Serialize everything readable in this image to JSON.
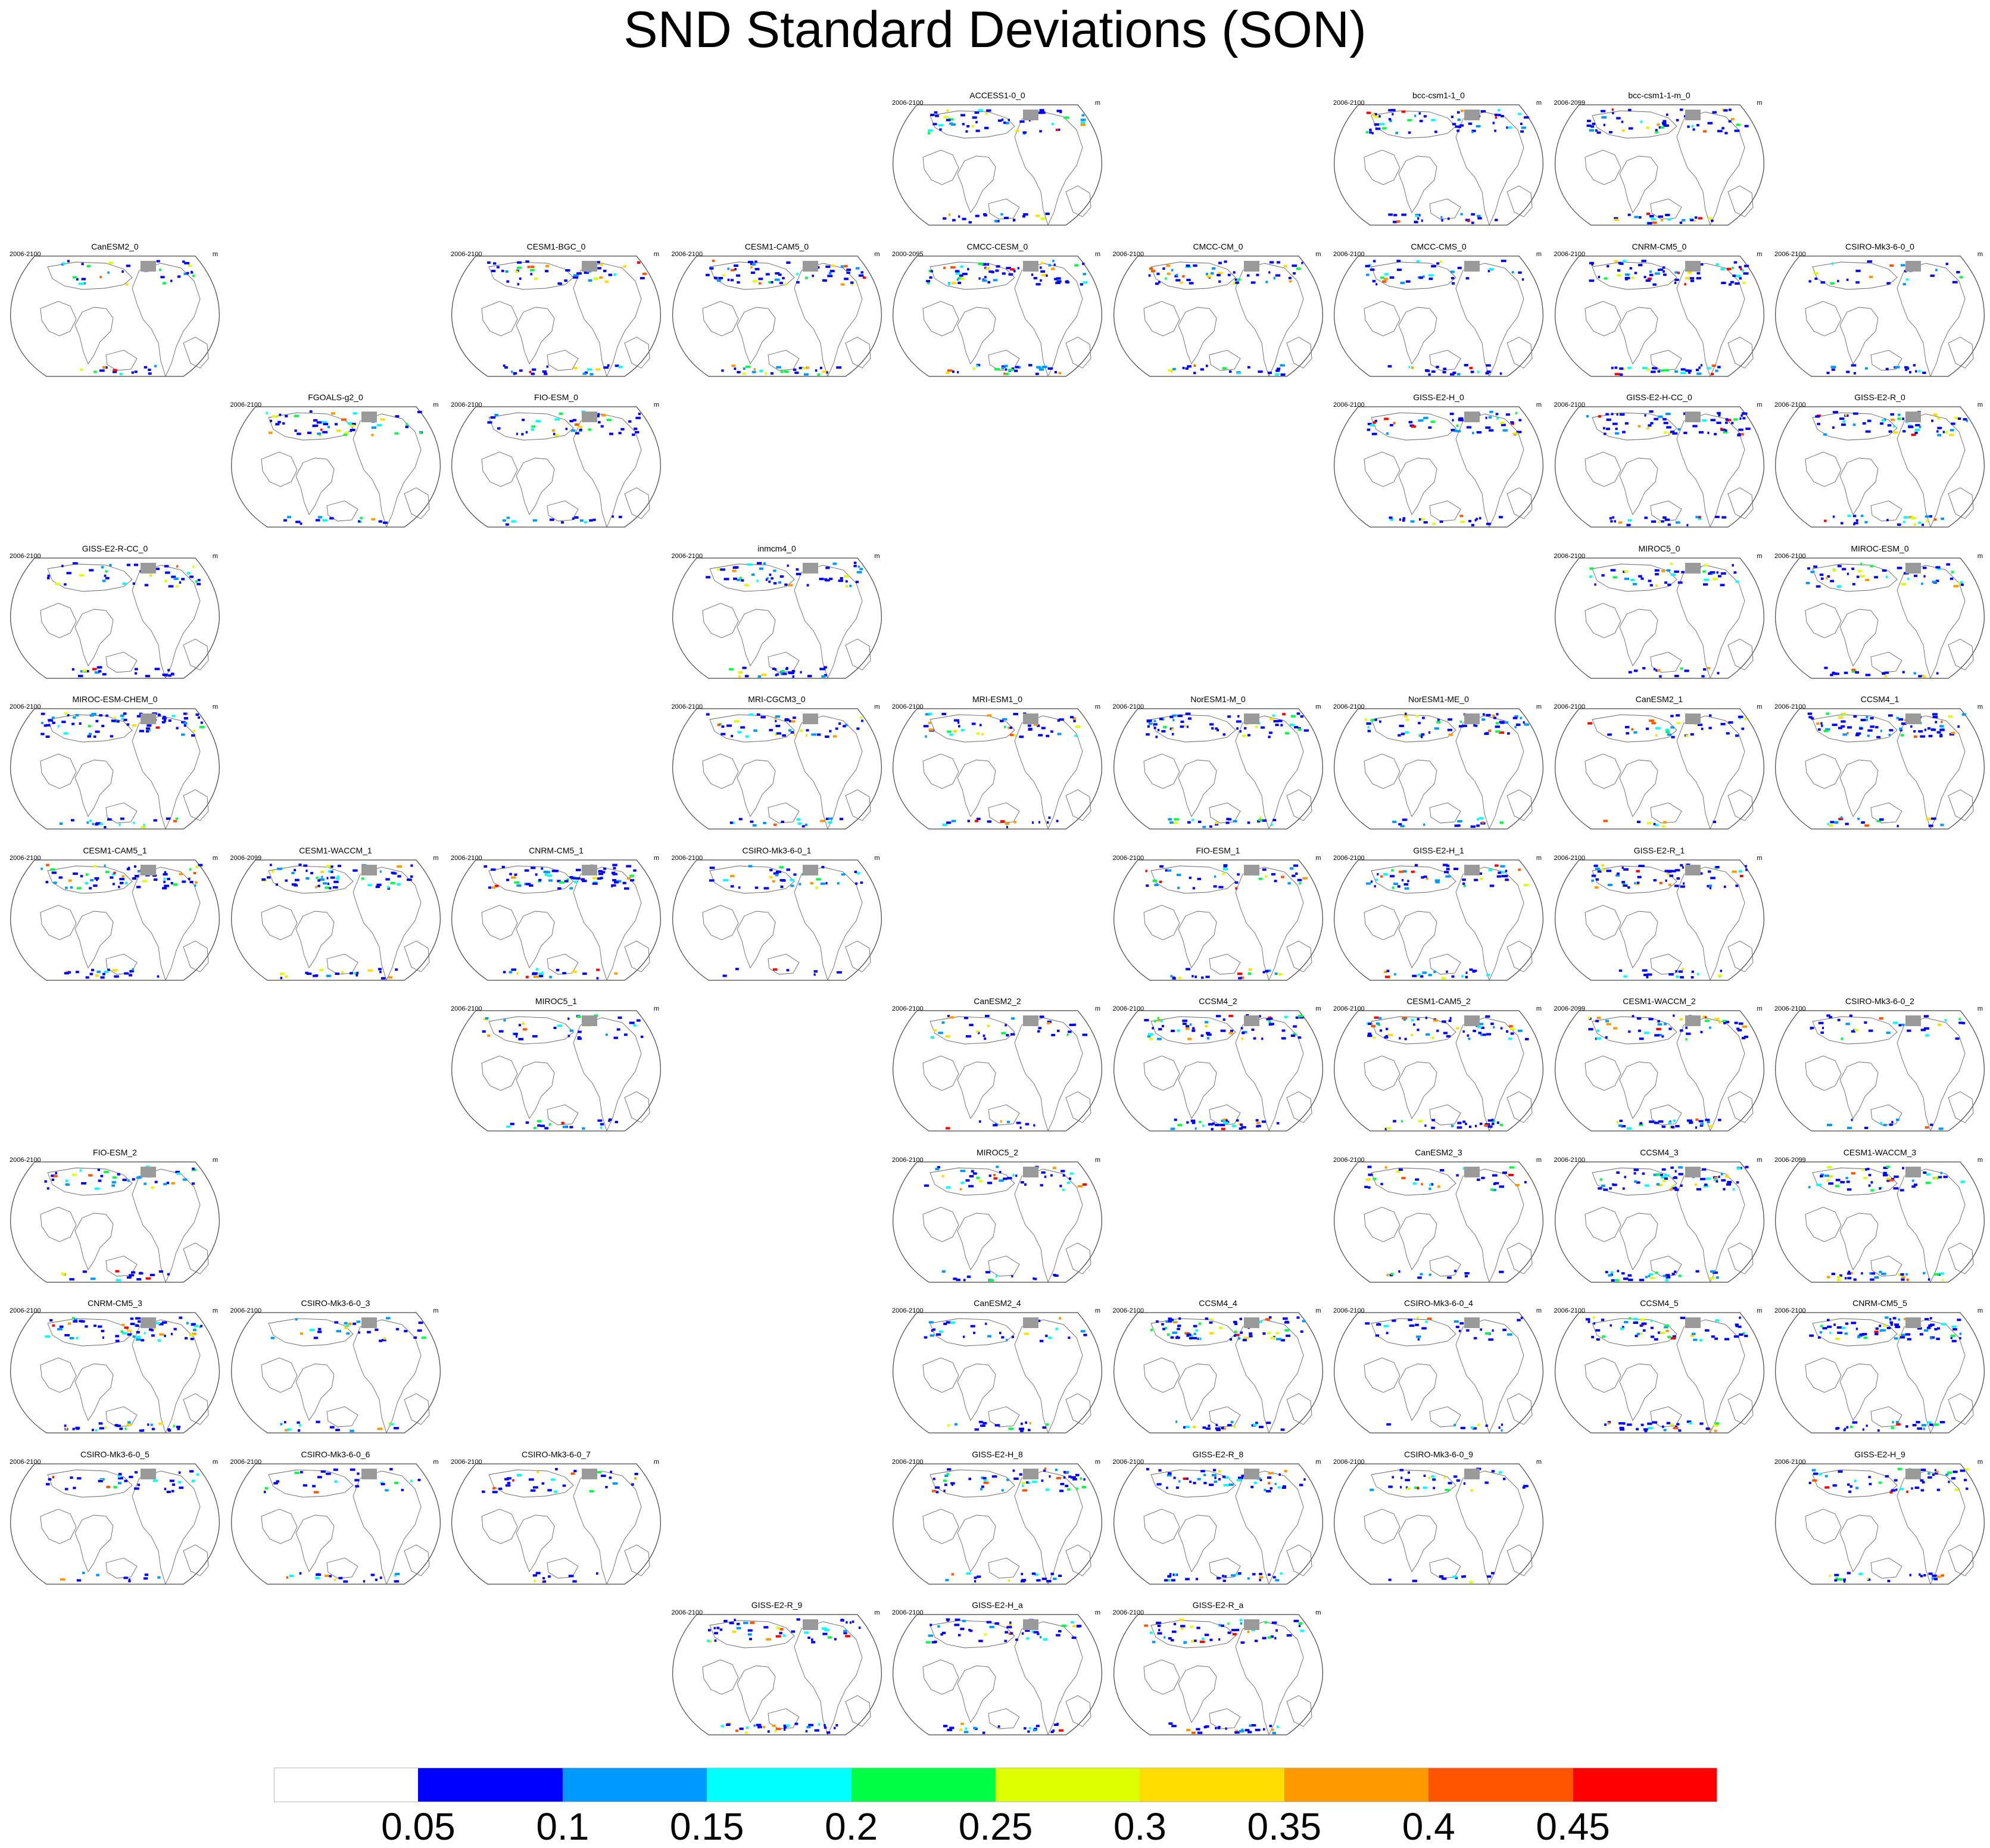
{
  "title": "SND Standard Deviations (SON)",
  "unit": "m",
  "colorbar": {
    "labels": [
      "0.05",
      "0.1",
      "0.15",
      "0.2",
      "0.25",
      "0.3",
      "0.35",
      "0.4",
      "0.45"
    ],
    "colors": [
      "#ffffff",
      "#0000ff",
      "#0099ff",
      "#00ffff",
      "#00ff44",
      "#ddff00",
      "#ffdd00",
      "#ff9900",
      "#ff5500",
      "#ff0000"
    ]
  },
  "panels": [
    {
      "name": "ACCESS1-0_0",
      "period": "2006-2100",
      "row": 0,
      "col": 4
    },
    {
      "name": "bcc-csm1-1_0",
      "period": "2006-2100",
      "row": 0,
      "col": 6
    },
    {
      "name": "bcc-csm1-1-m_0",
      "period": "2006-2099",
      "row": 0,
      "col": 7
    },
    {
      "name": "CanESM2_0",
      "period": "2006-2100",
      "row": 1,
      "col": 0
    },
    {
      "name": "CESM1-BGC_0",
      "period": "2006-2100",
      "row": 1,
      "col": 2
    },
    {
      "name": "CESM1-CAM5_0",
      "period": "2006-2100",
      "row": 1,
      "col": 3
    },
    {
      "name": "CMCC-CESM_0",
      "period": "2000-2095",
      "row": 1,
      "col": 4
    },
    {
      "name": "CMCC-CM_0",
      "period": "2006-2100",
      "row": 1,
      "col": 5
    },
    {
      "name": "CMCC-CMS_0",
      "period": "2006-2100",
      "row": 1,
      "col": 6
    },
    {
      "name": "CNRM-CM5_0",
      "period": "2006-2100",
      "row": 1,
      "col": 7
    },
    {
      "name": "CSIRO-Mk3-6-0_0",
      "period": "2006-2100",
      "row": 1,
      "col": 8
    },
    {
      "name": "FGOALS-g2_0",
      "period": "2006-2100",
      "row": 2,
      "col": 1
    },
    {
      "name": "FIO-ESM_0",
      "period": "2006-2100",
      "row": 2,
      "col": 2
    },
    {
      "name": "GISS-E2-H_0",
      "period": "2006-2100",
      "row": 2,
      "col": 6
    },
    {
      "name": "GISS-E2-H-CC_0",
      "period": "2006-2100",
      "row": 2,
      "col": 7
    },
    {
      "name": "GISS-E2-R_0",
      "period": "2006-2100",
      "row": 2,
      "col": 8
    },
    {
      "name": "GISS-E2-R-CC_0",
      "period": "2006-2100",
      "row": 3,
      "col": 0
    },
    {
      "name": "inmcm4_0",
      "period": "2006-2100",
      "row": 3,
      "col": 3
    },
    {
      "name": "MIROC5_0",
      "period": "2006-2100",
      "row": 3,
      "col": 7
    },
    {
      "name": "MIROC-ESM_0",
      "period": "2006-2100",
      "row": 3,
      "col": 8
    },
    {
      "name": "MIROC-ESM-CHEM_0",
      "period": "2006-2100",
      "row": 4,
      "col": 0
    },
    {
      "name": "MRI-CGCM3_0",
      "period": "2006-2100",
      "row": 4,
      "col": 3
    },
    {
      "name": "MRI-ESM1_0",
      "period": "2006-2100",
      "row": 4,
      "col": 4
    },
    {
      "name": "NorESM1-M_0",
      "period": "2006-2100",
      "row": 4,
      "col": 5
    },
    {
      "name": "NorESM1-ME_0",
      "period": "2006-2100",
      "row": 4,
      "col": 6
    },
    {
      "name": "CanESM2_1",
      "period": "2006-2100",
      "row": 4,
      "col": 7
    },
    {
      "name": "CCSM4_1",
      "period": "2006-2100",
      "row": 4,
      "col": 8
    },
    {
      "name": "CESM1-CAM5_1",
      "period": "2006-2100",
      "row": 5,
      "col": 0
    },
    {
      "name": "CESM1-WACCM_1",
      "period": "2006-2099",
      "row": 5,
      "col": 1
    },
    {
      "name": "CNRM-CM5_1",
      "period": "2006-2100",
      "row": 5,
      "col": 2
    },
    {
      "name": "CSIRO-Mk3-6-0_1",
      "period": "2006-2100",
      "row": 5,
      "col": 3
    },
    {
      "name": "FIO-ESM_1",
      "period": "2006-2100",
      "row": 5,
      "col": 5
    },
    {
      "name": "GISS-E2-H_1",
      "period": "2006-2100",
      "row": 5,
      "col": 6
    },
    {
      "name": "GISS-E2-R_1",
      "period": "2006-2100",
      "row": 5,
      "col": 7
    },
    {
      "name": "MIROC5_1",
      "period": "2006-2100",
      "row": 6,
      "col": 2
    },
    {
      "name": "CanESM2_2",
      "period": "2006-2100",
      "row": 6,
      "col": 4
    },
    {
      "name": "CCSM4_2",
      "period": "2006-2100",
      "row": 6,
      "col": 5
    },
    {
      "name": "CESM1-CAM5_2",
      "period": "2006-2100",
      "row": 6,
      "col": 6
    },
    {
      "name": "CESM1-WACCM_2",
      "period": "2006-2099",
      "row": 6,
      "col": 7
    },
    {
      "name": "CSIRO-Mk3-6-0_2",
      "period": "2006-2100",
      "row": 6,
      "col": 8
    },
    {
      "name": "FIO-ESM_2",
      "period": "2006-2100",
      "row": 7,
      "col": 0
    },
    {
      "name": "MIROC5_2",
      "period": "2006-2100",
      "row": 7,
      "col": 4
    },
    {
      "name": "CanESM2_3",
      "period": "2006-2100",
      "row": 7,
      "col": 6
    },
    {
      "name": "CCSM4_3",
      "period": "2006-2100",
      "row": 7,
      "col": 7
    },
    {
      "name": "CESM1-WACCM_3",
      "period": "2006-2099",
      "row": 7,
      "col": 8
    },
    {
      "name": "CNRM-CM5_3",
      "period": "2006-2100",
      "row": 8,
      "col": 0
    },
    {
      "name": "CSIRO-Mk3-6-0_3",
      "period": "2006-2100",
      "row": 8,
      "col": 1
    },
    {
      "name": "CanESM2_4",
      "period": "2006-2100",
      "row": 8,
      "col": 4
    },
    {
      "name": "CCSM4_4",
      "period": "2006-2100",
      "row": 8,
      "col": 5
    },
    {
      "name": "CSIRO-Mk3-6-0_4",
      "period": "2006-2100",
      "row": 8,
      "col": 6
    },
    {
      "name": "CCSM4_5",
      "period": "2006-2100",
      "row": 8,
      "col": 7
    },
    {
      "name": "CNRM-CM5_5",
      "period": "2006-2100",
      "row": 8,
      "col": 8
    },
    {
      "name": "CSIRO-Mk3-6-0_5",
      "period": "2006-2100",
      "row": 9,
      "col": 0
    },
    {
      "name": "CSIRO-Mk3-6-0_6",
      "period": "2006-2100",
      "row": 9,
      "col": 1
    },
    {
      "name": "CSIRO-Mk3-6-0_7",
      "period": "2006-2100",
      "row": 9,
      "col": 2
    },
    {
      "name": "GISS-E2-H_8",
      "period": "2006-2100",
      "row": 9,
      "col": 4
    },
    {
      "name": "GISS-E2-R_8",
      "period": "2006-2100",
      "row": 9,
      "col": 5
    },
    {
      "name": "CSIRO-Mk3-6-0_9",
      "period": "2006-2100",
      "row": 9,
      "col": 6
    },
    {
      "name": "GISS-E2-H_9",
      "period": "2006-2100",
      "row": 9,
      "col": 8
    },
    {
      "name": "GISS-E2-R_9",
      "period": "2006-2100",
      "row": 10,
      "col": 3
    },
    {
      "name": "GISS-E2-H_a",
      "period": "2006-2100",
      "row": 10,
      "col": 4
    },
    {
      "name": "GISS-E2-R_a",
      "period": "2006-2100",
      "row": 10,
      "col": 5
    }
  ]
}
